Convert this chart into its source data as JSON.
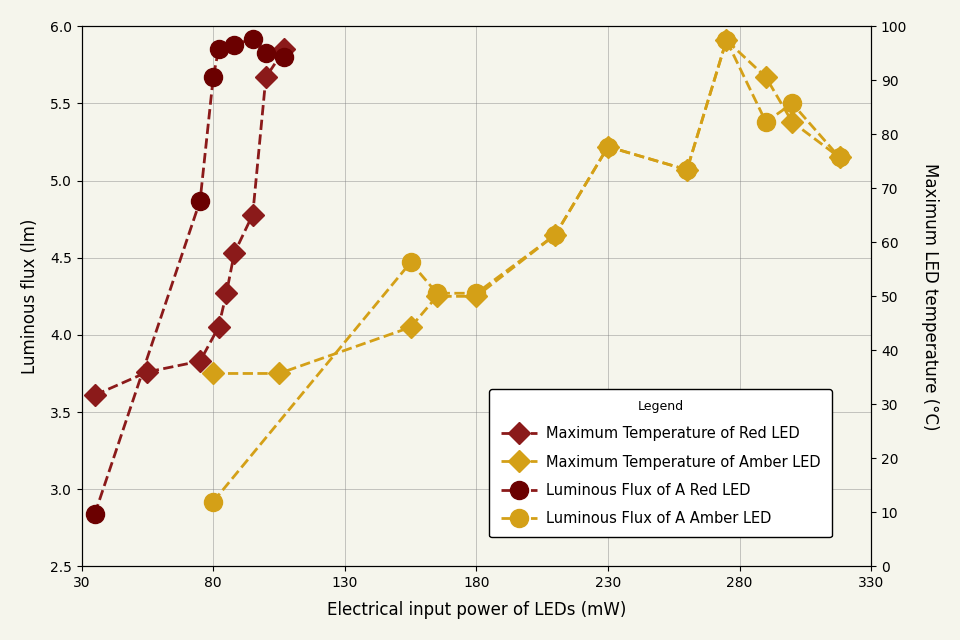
{
  "xlabel": "Electrical input power of LEDs (mW)",
  "ylabel_left": "Luminous flux (lm)",
  "ylabel_right": "Maximum LED temperature (°C)",
  "red_temp_x": [
    35,
    55,
    75,
    82,
    85,
    88,
    95,
    100,
    107
  ],
  "red_temp_y": [
    3.61,
    3.76,
    3.83,
    4.05,
    4.27,
    4.53,
    4.78,
    5.67,
    5.85
  ],
  "amber_temp_x": [
    80,
    105,
    155,
    165,
    180,
    210,
    230,
    260,
    275,
    290,
    300,
    318
  ],
  "amber_temp_y": [
    3.75,
    3.75,
    4.05,
    4.25,
    4.25,
    4.65,
    5.22,
    5.07,
    5.91,
    5.67,
    5.38,
    5.15
  ],
  "red_flux_x": [
    35,
    75,
    80,
    82,
    88,
    95,
    100,
    107
  ],
  "red_flux_y": [
    2.84,
    4.87,
    5.67,
    5.85,
    5.88,
    5.92,
    5.83,
    5.8
  ],
  "amber_flux_x": [
    80,
    155,
    165,
    180,
    210,
    230,
    260,
    275,
    290,
    300,
    318
  ],
  "amber_flux_y": [
    2.92,
    4.47,
    4.27,
    4.27,
    4.65,
    5.22,
    5.07,
    5.91,
    5.38,
    5.5,
    5.15
  ],
  "red_color": "#8B1A1A",
  "amber_color": "#D4A017",
  "xlim": [
    30,
    330
  ],
  "ylim_left": [
    2.5,
    6.0
  ],
  "ylim_right": [
    0,
    100
  ],
  "xticks": [
    30,
    80,
    130,
    180,
    230,
    280,
    330
  ],
  "yticks_left": [
    2.5,
    3.0,
    3.5,
    4.0,
    4.5,
    5.0,
    5.5,
    6.0
  ],
  "yticks_right": [
    0,
    10,
    20,
    30,
    40,
    50,
    60,
    70,
    80,
    90,
    100
  ],
  "legend_labels": [
    "Maximum Temperature of Red LED",
    "Maximum Temperature of Amber LED",
    "Luminous Flux of A Red LED",
    "Luminous Flux of A Amber LED"
  ],
  "bg_color": "#f5f5ec"
}
